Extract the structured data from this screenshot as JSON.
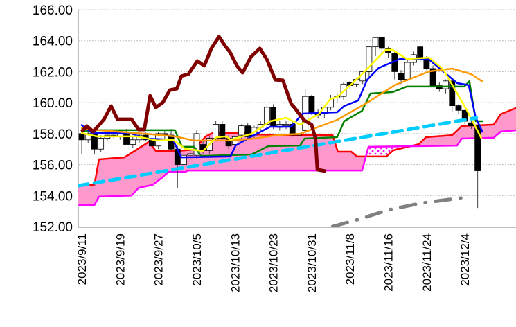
{
  "chart_data": {
    "type": "candlestick-ichimoku",
    "title": "",
    "xlabel": "",
    "ylabel": "",
    "ylim": [
      152,
      166
    ],
    "y_ticks": [
      "152.00",
      "154.00",
      "156.00",
      "158.00",
      "160.00",
      "162.00",
      "164.00",
      "166.00"
    ],
    "grid": "horizontal-dotted",
    "x_range_index": [
      -0.6,
      68.2
    ],
    "x_tick_indices": [
      0,
      6,
      12,
      18,
      24,
      30,
      36,
      42,
      48,
      54,
      60
    ],
    "x_tick_labels": [
      "2023/9/11",
      "2023/9/19",
      "2023/9/27",
      "2023/10/5",
      "2023/10/13",
      "2023/10/23",
      "2023/10/31",
      "2023/11/8",
      "2023/11/16",
      "2023/11/24",
      "2023/12/4"
    ],
    "candles_ohlc": [
      [
        158.0,
        158.3,
        156.7,
        157.6
      ],
      [
        157.6,
        158.4,
        157.4,
        158.0
      ],
      [
        158.0,
        158.2,
        156.7,
        157.0
      ],
      [
        157.0,
        157.9,
        156.8,
        157.7
      ],
      [
        157.7,
        158.0,
        157.5,
        157.9
      ],
      [
        157.9,
        158.1,
        157.7,
        157.8
      ],
      [
        157.8,
        158.2,
        157.6,
        158.0
      ],
      [
        158.0,
        158.3,
        157.5,
        157.3
      ],
      [
        157.3,
        157.8,
        157.1,
        157.6
      ],
      [
        157.6,
        158.0,
        157.4,
        157.9
      ],
      [
        157.9,
        158.1,
        157.5,
        157.6
      ],
      [
        157.6,
        157.8,
        157.0,
        157.2
      ],
      [
        157.2,
        158.1,
        157.0,
        158.0
      ],
      [
        158.0,
        158.2,
        157.6,
        157.9
      ],
      [
        157.9,
        158.3,
        156.9,
        157.0
      ],
      [
        157.0,
        157.2,
        154.5,
        156.0
      ],
      [
        156.0,
        156.8,
        155.9,
        156.6
      ],
      [
        156.6,
        156.9,
        156.3,
        156.7
      ],
      [
        156.6,
        158.2,
        156.4,
        158.0
      ],
      [
        157.3,
        157.6,
        156.7,
        156.9
      ],
      [
        156.9,
        157.8,
        156.7,
        157.7
      ],
      [
        157.7,
        158.8,
        157.5,
        158.6
      ],
      [
        158.6,
        158.8,
        157.6,
        157.7
      ],
      [
        157.7,
        157.9,
        157.0,
        157.2
      ],
      [
        157.3,
        157.9,
        157.1,
        157.8
      ],
      [
        157.9,
        158.6,
        157.7,
        158.5
      ],
      [
        158.5,
        158.7,
        157.6,
        157.8
      ],
      [
        157.9,
        158.5,
        157.7,
        158.4
      ],
      [
        158.4,
        158.8,
        158.2,
        158.6
      ],
      [
        158.6,
        159.9,
        158.4,
        159.7
      ],
      [
        159.7,
        159.9,
        158.3,
        158.5
      ],
      [
        158.4,
        158.8,
        158.2,
        158.6
      ],
      [
        158.5,
        158.8,
        158.3,
        158.6
      ],
      [
        158.6,
        158.8,
        157.8,
        157.9
      ],
      [
        157.9,
        158.2,
        157.7,
        158.0
      ],
      [
        158.2,
        160.9,
        158.0,
        160.4
      ],
      [
        160.4,
        160.5,
        159.2,
        159.3
      ],
      [
        159.4,
        159.6,
        159.0,
        159.2
      ],
      [
        159.3,
        159.8,
        159.0,
        159.7
      ],
      [
        159.7,
        160.5,
        159.5,
        160.3
      ],
      [
        160.3,
        160.6,
        160.0,
        160.4
      ],
      [
        160.4,
        161.3,
        160.2,
        161.2
      ],
      [
        161.3,
        161.4,
        160.9,
        161.1
      ],
      [
        161.2,
        161.6,
        161.0,
        161.5
      ],
      [
        161.4,
        162.0,
        161.2,
        162.0
      ],
      [
        162.0,
        163.6,
        161.6,
        163.6
      ],
      [
        163.6,
        164.2,
        163.0,
        164.2
      ],
      [
        164.2,
        164.2,
        163.2,
        163.5
      ],
      [
        163.5,
        163.6,
        162.9,
        163.2
      ],
      [
        163.2,
        163.3,
        161.5,
        162.0
      ],
      [
        161.9,
        162.1,
        161.2,
        161.5
      ],
      [
        161.5,
        162.8,
        161.4,
        162.6
      ],
      [
        162.6,
        163.3,
        162.4,
        163.1
      ],
      [
        163.6,
        163.7,
        162.6,
        162.9
      ],
      [
        162.9,
        163.0,
        162.1,
        162.2
      ],
      [
        162.2,
        162.4,
        161.0,
        161.1
      ],
      [
        161.1,
        161.3,
        160.7,
        160.9
      ],
      [
        160.9,
        161.5,
        160.6,
        161.4
      ],
      [
        161.4,
        161.5,
        159.4,
        159.8
      ],
      [
        159.8,
        159.9,
        159.3,
        159.5
      ],
      [
        159.5,
        159.6,
        158.6,
        158.8
      ],
      [
        158.7,
        158.8,
        158.3,
        158.5
      ],
      [
        158.5,
        158.6,
        153.2,
        155.6
      ]
    ],
    "series": [
      {
        "name": "senkou-span-a",
        "color": "#ff0000",
        "points": [
          [
            -0.5,
            154.64
          ],
          [
            2,
            154.7
          ],
          [
            2.7,
            156.34
          ],
          [
            6.7,
            156.47
          ],
          [
            10.5,
            157.46
          ],
          [
            11.6,
            156.88
          ],
          [
            15.1,
            156.88
          ],
          [
            17.6,
            156.97
          ],
          [
            19.4,
            157.82
          ],
          [
            20.5,
            158.04
          ],
          [
            25.5,
            158.04
          ],
          [
            26.6,
            157.95
          ],
          [
            32.8,
            157.9
          ],
          [
            39.3,
            157.9
          ],
          [
            40.1,
            156.83
          ],
          [
            42.2,
            156.83
          ],
          [
            43.1,
            156.52
          ],
          [
            47.7,
            156.52
          ],
          [
            48.8,
            156.92
          ],
          [
            52.8,
            157.32
          ],
          [
            53.9,
            157.77
          ],
          [
            58,
            157.9
          ],
          [
            59.5,
            158.49
          ],
          [
            64.5,
            158.58
          ],
          [
            65.6,
            159.25
          ],
          [
            68.2,
            159.69
          ]
        ]
      },
      {
        "name": "senkou-span-b",
        "color": "#ff00ff",
        "points": [
          [
            -0.5,
            153.39
          ],
          [
            2,
            153.39
          ],
          [
            2.7,
            153.93
          ],
          [
            7.8,
            154.0
          ],
          [
            8.9,
            154.5
          ],
          [
            11.1,
            154.69
          ],
          [
            12.5,
            155.13
          ],
          [
            13.6,
            155.53
          ],
          [
            16.2,
            155.53
          ],
          [
            16.7,
            155.62
          ],
          [
            43.9,
            155.62
          ],
          [
            44.9,
            157.15
          ],
          [
            58.8,
            157.23
          ],
          [
            59.5,
            157.68
          ],
          [
            64.5,
            157.73
          ],
          [
            65.6,
            158.13
          ],
          [
            68.2,
            158.22
          ]
        ]
      },
      {
        "name": "kijun-sen",
        "color": "#008000",
        "points": [
          [
            -0.1,
            158.13
          ],
          [
            2.4,
            158.22
          ],
          [
            14.6,
            158.22
          ],
          [
            15.7,
            157.15
          ],
          [
            17.6,
            157.15
          ],
          [
            18.7,
            156.56
          ],
          [
            26.6,
            156.65
          ],
          [
            29.2,
            157.19
          ],
          [
            34.2,
            157.23
          ],
          [
            34.9,
            157.68
          ],
          [
            40,
            157.77
          ],
          [
            41.1,
            158.8
          ],
          [
            43.9,
            159.47
          ],
          [
            45.2,
            160.59
          ],
          [
            48.7,
            160.68
          ],
          [
            50.9,
            161.04
          ],
          [
            59.9,
            161.04
          ],
          [
            60.7,
            161.39
          ],
          [
            61.7,
            158.8
          ],
          [
            62.8,
            158.8
          ]
        ]
      },
      {
        "name": "tenkan-sen",
        "color": "#0000ff",
        "points": [
          [
            -0.1,
            158.58
          ],
          [
            1.6,
            158.04
          ],
          [
            7.5,
            158.04
          ],
          [
            10,
            157.68
          ],
          [
            14.3,
            157.6
          ],
          [
            15.6,
            156.47
          ],
          [
            23.3,
            156.52
          ],
          [
            24.1,
            157.23
          ],
          [
            26.6,
            157.82
          ],
          [
            29.5,
            158.44
          ],
          [
            32.8,
            158.44
          ],
          [
            34.6,
            159.29
          ],
          [
            40,
            159.38
          ],
          [
            41.1,
            159.78
          ],
          [
            43.3,
            160.14
          ],
          [
            44.7,
            161.48
          ],
          [
            46.5,
            162.24
          ],
          [
            49.8,
            162.82
          ],
          [
            54.4,
            162.78
          ],
          [
            58.8,
            161.26
          ],
          [
            60.6,
            161.13
          ],
          [
            61.7,
            159.02
          ],
          [
            62.8,
            158.08
          ]
        ]
      },
      {
        "name": "moving-average-long",
        "color": "#ff9900",
        "points": [
          [
            -0.1,
            158.35
          ],
          [
            2.7,
            158.22
          ],
          [
            10,
            157.99
          ],
          [
            14.6,
            157.82
          ],
          [
            17.6,
            157.55
          ],
          [
            23.3,
            157.55
          ],
          [
            27,
            157.68
          ],
          [
            30.6,
            157.9
          ],
          [
            34.2,
            157.99
          ],
          [
            37.1,
            158.44
          ],
          [
            40,
            158.89
          ],
          [
            44.4,
            159.92
          ],
          [
            49,
            161.13
          ],
          [
            54.4,
            162.02
          ],
          [
            58,
            162.2
          ],
          [
            61,
            161.84
          ],
          [
            62.8,
            161.35
          ]
        ]
      },
      {
        "name": "moving-average-short",
        "color": "#ffff00",
        "points": [
          [
            -0.1,
            158.04
          ],
          [
            2.4,
            157.82
          ],
          [
            8.6,
            157.82
          ],
          [
            11.8,
            157.55
          ],
          [
            14.3,
            157.6
          ],
          [
            16.2,
            157.01
          ],
          [
            19,
            156.88
          ],
          [
            21.1,
            157.77
          ],
          [
            22.7,
            157.82
          ],
          [
            23.3,
            157.6
          ],
          [
            26.6,
            157.99
          ],
          [
            29.5,
            158.8
          ],
          [
            32,
            159.02
          ],
          [
            34.2,
            158.58
          ],
          [
            37.1,
            159.25
          ],
          [
            38.9,
            160.23
          ],
          [
            40,
            160.36
          ],
          [
            43.6,
            161.71
          ],
          [
            47.6,
            163.41
          ],
          [
            48.7,
            163.41
          ],
          [
            50.9,
            162.82
          ],
          [
            54.4,
            162.91
          ],
          [
            56.6,
            162.15
          ],
          [
            60.2,
            159.6
          ],
          [
            62.6,
            157.68
          ]
        ]
      },
      {
        "name": "support-trendline",
        "color": "#00ccff",
        "style": "dashed",
        "points": [
          [
            -0.5,
            154.64
          ],
          [
            61.8,
            159.02
          ]
        ]
      },
      {
        "name": "chikou-span",
        "color": "#800000",
        "points": [
          [
            0,
            158.13
          ],
          [
            0.8,
            158.49
          ],
          [
            1.8,
            158.13
          ],
          [
            3.5,
            158.93
          ],
          [
            4.6,
            159.78
          ],
          [
            5.6,
            158.93
          ],
          [
            6.7,
            158.93
          ],
          [
            7.8,
            158.93
          ],
          [
            8.9,
            158.26
          ],
          [
            9.8,
            158.26
          ],
          [
            10.7,
            160.45
          ],
          [
            11.6,
            159.69
          ],
          [
            12.7,
            160.01
          ],
          [
            13.8,
            160.81
          ],
          [
            14.9,
            160.9
          ],
          [
            15.6,
            161.71
          ],
          [
            16.7,
            161.84
          ],
          [
            18.1,
            162.69
          ],
          [
            19.2,
            162.38
          ],
          [
            20.3,
            163.5
          ],
          [
            21.5,
            164.26
          ],
          [
            22.5,
            163.63
          ],
          [
            23.2,
            163.27
          ],
          [
            24.3,
            162.38
          ],
          [
            25.2,
            161.93
          ],
          [
            26.5,
            162.96
          ],
          [
            27.9,
            163.5
          ],
          [
            29,
            162.78
          ],
          [
            30.3,
            161.48
          ],
          [
            31.5,
            161.44
          ],
          [
            32.8,
            159.92
          ],
          [
            33.3,
            159.69
          ],
          [
            34.1,
            159.25
          ],
          [
            34.9,
            158.84
          ],
          [
            36,
            158.58
          ],
          [
            36.6,
            157.68
          ],
          [
            36.9,
            155.67
          ],
          [
            38.2,
            155.58
          ]
        ]
      },
      {
        "name": "lower-trendline",
        "color": "#808080",
        "style": "dash-dot",
        "points": [
          [
            39.3,
            152.0
          ],
          [
            43.6,
            152.49
          ],
          [
            48,
            153.08
          ],
          [
            53.3,
            153.52
          ],
          [
            60.8,
            153.92
          ]
        ]
      }
    ],
    "cloud_color": "#ff99cc",
    "candle_up_color": "#ffffff",
    "candle_down_color": "#000000"
  }
}
